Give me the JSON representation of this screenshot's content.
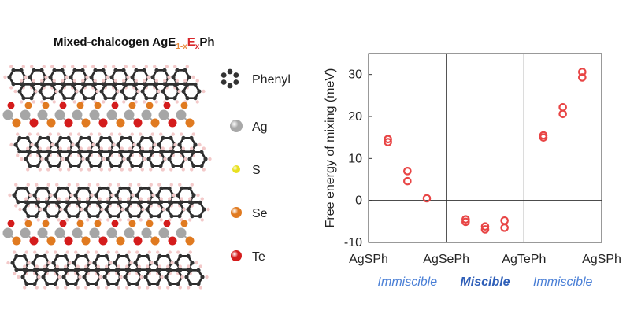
{
  "figure": {
    "title_prefix": "Mixed-chalcogen AgE",
    "title_sub1": "1-x",
    "title_e2": "E",
    "title_sub2": "x",
    "title_suffix": "Ph",
    "colors": {
      "e1": "#e8883a",
      "e2": "#d8262a"
    }
  },
  "legend": [
    {
      "label": "Phenyl",
      "icon": "phenyl-ring-icon",
      "color": "#333333"
    },
    {
      "label": "Ag",
      "icon": "ag-atom-icon",
      "color": "#a8a8a8"
    },
    {
      "label": "S",
      "icon": "s-atom-icon",
      "color": "#e8e020"
    },
    {
      "label": "Se",
      "icon": "se-atom-icon",
      "color": "#e07a20"
    },
    {
      "label": "Te",
      "icon": "te-atom-icon",
      "color": "#d41c1c"
    }
  ],
  "chart_data": {
    "type": "scatter",
    "ylabel": "Free energy of mixing (meV)",
    "ylim": [
      -10,
      35
    ],
    "yticks": [
      -10,
      0,
      10,
      20,
      30
    ],
    "xlim": [
      0,
      3
    ],
    "category_ticks": [
      {
        "x": 0,
        "label": "AgSPh"
      },
      {
        "x": 1,
        "label": "AgSePh"
      },
      {
        "x": 2,
        "label": "AgTePh"
      },
      {
        "x": 3,
        "label": "AgSPh"
      }
    ],
    "dividers": [
      1,
      2
    ],
    "zero_line": 0,
    "regions": [
      {
        "label": "Immiscible",
        "center": 0.5,
        "bold": false
      },
      {
        "label": "Miscible",
        "center": 1.5,
        "bold": true
      },
      {
        "label": "Immiscible",
        "center": 2.5,
        "bold": false
      }
    ],
    "marker_color": "#e84545",
    "points": [
      {
        "x": 0.25,
        "y": 14.6
      },
      {
        "x": 0.25,
        "y": 13.9
      },
      {
        "x": 0.5,
        "y": 7.0
      },
      {
        "x": 0.5,
        "y": 4.6
      },
      {
        "x": 0.75,
        "y": 0.5
      },
      {
        "x": 1.25,
        "y": -4.5
      },
      {
        "x": 1.25,
        "y": -5.1
      },
      {
        "x": 1.5,
        "y": -6.2
      },
      {
        "x": 1.5,
        "y": -6.9
      },
      {
        "x": 1.75,
        "y": -4.8
      },
      {
        "x": 1.75,
        "y": -6.5
      },
      {
        "x": 2.25,
        "y": 15.5
      },
      {
        "x": 2.25,
        "y": 15.0
      },
      {
        "x": 2.5,
        "y": 22.2
      },
      {
        "x": 2.5,
        "y": 20.6
      },
      {
        "x": 2.75,
        "y": 30.6
      },
      {
        "x": 2.75,
        "y": 29.3
      }
    ]
  }
}
